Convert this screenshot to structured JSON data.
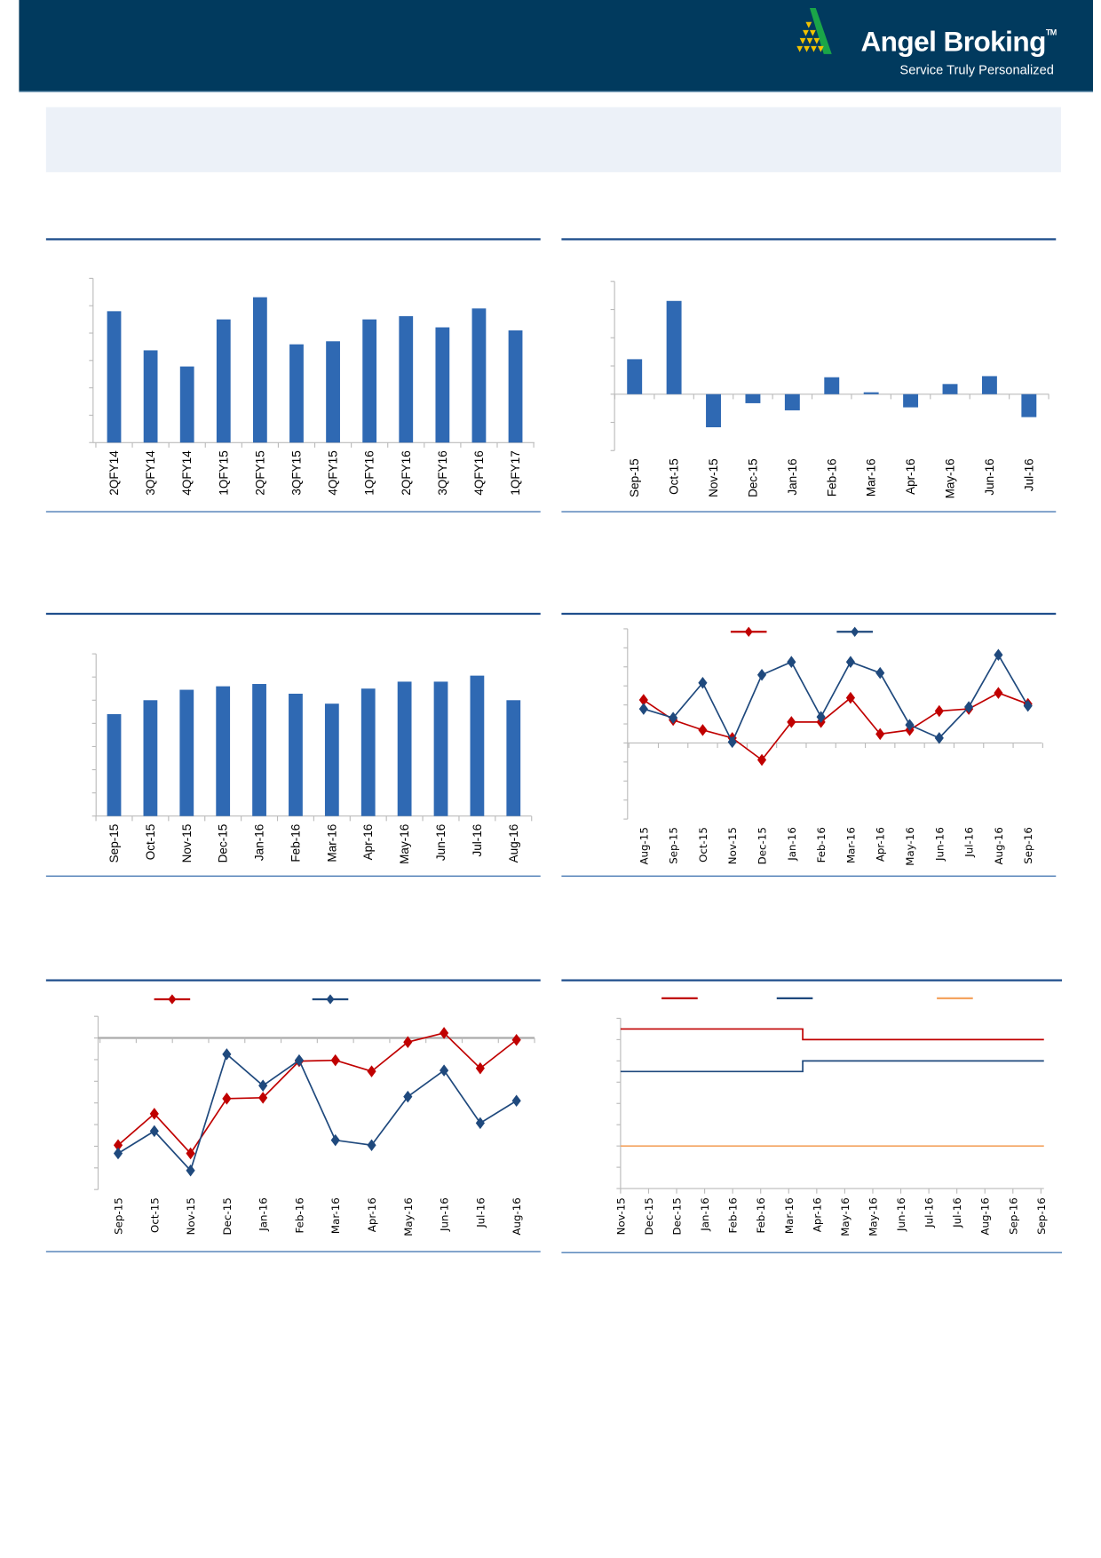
{
  "header": {
    "brand": "Angel Broking",
    "trademark": "TM",
    "tagline": "Service Truly Personalized",
    "background": "#013a5e"
  },
  "colors": {
    "bar": "#2f69b3",
    "red": "#c00000",
    "blue": "#1f497d",
    "orange": "#f4a460",
    "rule": "#1f4e8c"
  },
  "chart_data": [
    {
      "type": "bar",
      "categories": [
        "2QFY14",
        "3QFY14",
        "4QFY14",
        "1QFY15",
        "2QFY15",
        "3QFY15",
        "4QFY15",
        "1QFY16",
        "2QFY16",
        "3QFY16",
        "4QFY16",
        "1QFY17"
      ],
      "values": [
        4.8,
        3.37,
        2.78,
        4.5,
        5.31,
        3.59,
        3.7,
        4.5,
        4.62,
        4.21,
        4.9,
        4.1
      ],
      "ylim": [
        0,
        6
      ],
      "grid": false
    },
    {
      "type": "bar",
      "categories": [
        "Sep-15",
        "Oct-15",
        "Nov-15",
        "Dec-15",
        "Jan-16",
        "Feb-16",
        "Mar-16",
        "Apr-16",
        "May-16",
        "Jun-16",
        "Jul-16"
      ],
      "values": [
        0.93,
        2.48,
        -0.88,
        -0.24,
        -0.43,
        0.45,
        0.05,
        -0.35,
        0.27,
        0.48,
        -0.61
      ],
      "ylim": [
        -1.5,
        3
      ],
      "grid": false
    },
    {
      "type": "bar",
      "categories": [
        "Sep-15",
        "Oct-15",
        "Nov-15",
        "Dec-15",
        "Jan-16",
        "Feb-16",
        "Mar-16",
        "Apr-16",
        "May-16",
        "Jun-16",
        "Jul-16",
        "Aug-16"
      ],
      "values": [
        4.4,
        5.0,
        5.45,
        5.6,
        5.7,
        5.28,
        4.85,
        5.5,
        5.8,
        5.8,
        6.06,
        5.0
      ],
      "ylim": [
        0,
        7
      ],
      "grid": false
    },
    {
      "type": "line",
      "categories": [
        "Aug-15",
        "Sep-15",
        "Oct-15",
        "Nov-15",
        "Dec-15",
        "Jan-16",
        "Feb-16",
        "Mar-16",
        "Apr-16",
        "May-16",
        "Jun-16",
        "Jul-16",
        "Aug-16",
        "Sep-16"
      ],
      "series": [
        {
          "color": "#c00000",
          "values": [
            2.26,
            1.21,
            0.68,
            0.26,
            -0.89,
            1.1,
            1.1,
            2.37,
            0.47,
            0.68,
            1.68,
            1.79,
            2.63,
            2.05
          ]
        },
        {
          "color": "#1f497d",
          "values": [
            1.79,
            1.32,
            3.16,
            0.05,
            3.58,
            4.26,
            1.37,
            4.26,
            3.68,
            0.95,
            0.26,
            1.89,
            4.63,
            1.95
          ]
        }
      ],
      "ylim": [
        -4,
        6
      ],
      "legend": "top",
      "grid": false
    },
    {
      "type": "line",
      "categories": [
        "Sep-15",
        "Oct-15",
        "Nov-15",
        "Dec-15",
        "Jan-16",
        "Feb-16",
        "Mar-16",
        "Apr-16",
        "May-16",
        "Jun-16",
        "Jul-16",
        "Aug-16"
      ],
      "series": [
        {
          "color": "#c00000",
          "values": [
            -4.95,
            -3.5,
            -5.33,
            -2.8,
            -2.76,
            -1.07,
            -1.03,
            -1.54,
            -0.19,
            0.23,
            -1.4,
            -0.09
          ]
        },
        {
          "color": "#1f497d",
          "values": [
            -5.33,
            -4.3,
            -6.12,
            -0.75,
            -2.2,
            -1.03,
            -4.72,
            -4.95,
            -2.71,
            -1.5,
            -3.93,
            -2.9
          ]
        }
      ],
      "ylim": [
        -7,
        1
      ],
      "legend": "top",
      "grid": false
    },
    {
      "type": "line",
      "categories": [
        "Nov-15",
        "Dec-15",
        "Dec-15",
        "Jan-16",
        "Feb-16",
        "Feb-16",
        "Mar-16",
        "Apr-16",
        "May-16",
        "May-16",
        "Jun-16",
        "Jul-16",
        "Jul-16",
        "Aug-16",
        "Sep-16",
        "Sep-16"
      ],
      "series": [
        {
          "color": "#c00000",
          "values": [
            6.75,
            6.75,
            6.75,
            6.75,
            6.75,
            6.75,
            6.75,
            6.5,
            6.5,
            6.5,
            6.5,
            6.5,
            6.5,
            6.5,
            6.5,
            6.5
          ]
        },
        {
          "color": "#1f497d",
          "values": [
            5.75,
            5.75,
            5.75,
            5.75,
            5.75,
            5.75,
            5.75,
            6.0,
            6.0,
            6.0,
            6.0,
            6.0,
            6.0,
            6.0,
            6.0,
            6.0
          ]
        },
        {
          "color": "#f4a460",
          "values": [
            4,
            4,
            4,
            4,
            4,
            4,
            4,
            4,
            4,
            4,
            4,
            4,
            4,
            4,
            4,
            4
          ]
        }
      ],
      "step": true,
      "ylim": [
        3,
        7
      ],
      "legend": "top",
      "grid": false
    }
  ]
}
